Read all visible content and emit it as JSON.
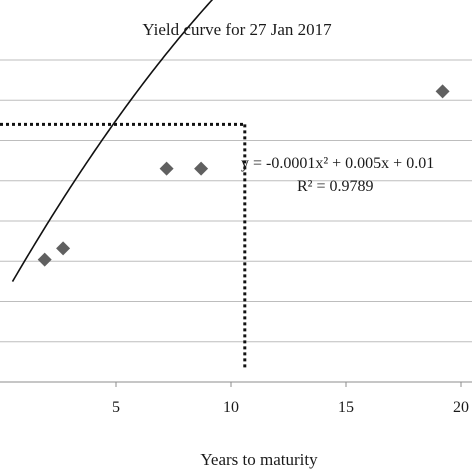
{
  "chart_data": {
    "type": "scatter",
    "title": "Yield curve for 27 Jan 2017",
    "xlabel": "Years to maturity",
    "ylabel": "",
    "xlim": [
      0,
      20.5
    ],
    "ylim": [
      0,
      0.04
    ],
    "grid": true,
    "x_ticks": [
      5,
      10,
      15,
      20
    ],
    "series": [
      {
        "points": [
          {
            "x": 1.9,
            "y": 0.0152
          },
          {
            "x": 2.7,
            "y": 0.0166
          },
          {
            "x": 7.2,
            "y": 0.0265
          },
          {
            "x": 8.7,
            "y": 0.0265
          },
          {
            "x": 19.2,
            "y": 0.0361
          }
        ],
        "color": "#606060",
        "marker": "diamond"
      }
    ],
    "trendline": {
      "type": "polynomial",
      "coefficients": {
        "a": -0.0001,
        "b": 0.005,
        "c": 0.01
      },
      "equation_text": "y = -0.0001x² + 0.005x + 0.01",
      "r2_text": "R² = 0.9789"
    },
    "reference_line": {
      "x": 10.6,
      "y": 0.032,
      "style": "dotted"
    }
  }
}
